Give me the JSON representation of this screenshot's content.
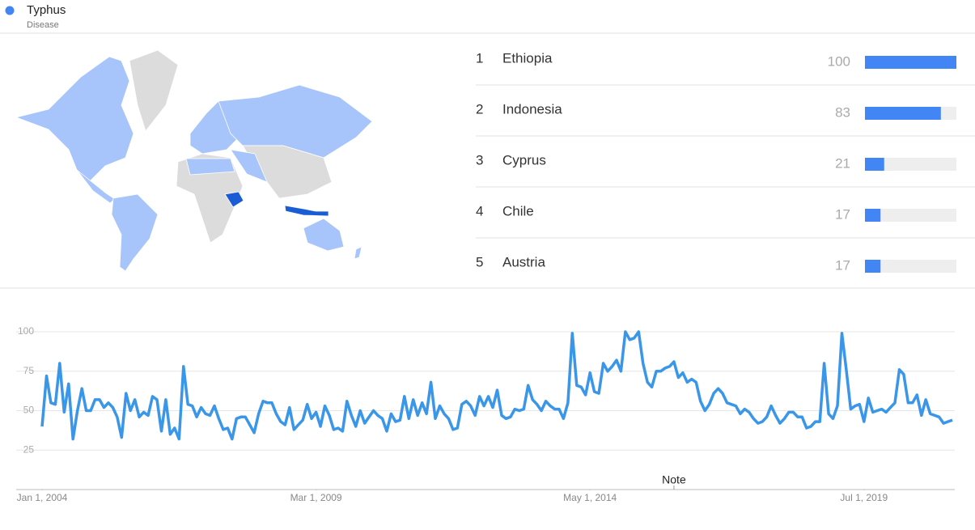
{
  "header": {
    "title": "Typhus",
    "subtitle": "Disease",
    "color": "#4285f4"
  },
  "ranking": {
    "type": "bar",
    "color": "#4285f4",
    "track_color": "#eeeeee",
    "xlim": [
      0,
      100
    ],
    "rows": [
      {
        "rank": 1,
        "name": "Ethiopia",
        "value": 100
      },
      {
        "rank": 2,
        "name": "Indonesia",
        "value": 83
      },
      {
        "rank": 3,
        "name": "Cyprus",
        "value": 21
      },
      {
        "rank": 4,
        "name": "Chile",
        "value": 17
      },
      {
        "rank": 5,
        "name": "Austria",
        "value": 17
      }
    ]
  },
  "chart_data": {
    "type": "line",
    "color": "#3a96e8",
    "grid": true,
    "ylim": [
      0,
      100
    ],
    "yticks": [
      25,
      50,
      75,
      100
    ],
    "xlim": [
      "2004-01-01",
      "2021-03-01"
    ],
    "xticks": [
      {
        "value": "2004-01-01",
        "label": "Jan 1, 2004"
      },
      {
        "value": "2009-03-01",
        "label": "Mar 1, 2009"
      },
      {
        "value": "2014-05-01",
        "label": "May 1, 2014"
      },
      {
        "value": "2019-07-01",
        "label": "Jul 1, 2019"
      }
    ],
    "annotations": [
      {
        "x": "2015-12-01",
        "text": "Note"
      }
    ],
    "x": [
      "2004-01-01",
      "2004-02-01",
      "2004-03-01",
      "2004-04-01",
      "2004-05-01",
      "2004-06-01",
      "2004-07-01",
      "2004-08-01",
      "2004-09-01",
      "2004-10-01",
      "2004-11-01",
      "2004-12-01",
      "2005-01-01",
      "2005-02-01",
      "2005-03-01",
      "2005-04-01",
      "2005-05-01",
      "2005-06-01",
      "2005-07-01",
      "2005-08-01",
      "2005-09-01",
      "2005-10-01",
      "2005-11-01",
      "2005-12-01",
      "2006-01-01",
      "2006-02-01",
      "2006-03-01",
      "2006-04-01",
      "2006-05-01",
      "2006-06-01",
      "2006-07-01",
      "2006-08-01",
      "2006-09-01",
      "2006-10-01",
      "2006-11-01",
      "2006-12-01",
      "2007-01-01",
      "2007-02-01",
      "2007-03-01",
      "2007-04-01",
      "2007-05-01",
      "2007-06-01",
      "2007-07-01",
      "2007-08-01",
      "2007-09-01",
      "2007-10-01",
      "2007-11-01",
      "2007-12-01",
      "2008-01-01",
      "2008-02-01",
      "2008-03-01",
      "2008-04-01",
      "2008-05-01",
      "2008-06-01",
      "2008-07-01",
      "2008-08-01",
      "2008-09-01",
      "2008-10-01",
      "2008-11-01",
      "2008-12-01",
      "2009-01-01",
      "2009-02-01",
      "2009-03-01",
      "2009-04-01",
      "2009-05-01",
      "2009-06-01",
      "2009-07-01",
      "2009-08-01",
      "2009-09-01",
      "2009-10-01",
      "2009-11-01",
      "2009-12-01",
      "2010-01-01",
      "2010-02-01",
      "2010-03-01",
      "2010-04-01",
      "2010-05-01",
      "2010-06-01",
      "2010-07-01",
      "2010-08-01",
      "2010-09-01",
      "2010-10-01",
      "2010-11-01",
      "2010-12-01",
      "2011-01-01",
      "2011-02-01",
      "2011-03-01",
      "2011-04-01",
      "2011-05-01",
      "2011-06-01",
      "2011-07-01",
      "2011-08-01",
      "2011-09-01",
      "2011-10-01",
      "2011-11-01",
      "2011-12-01",
      "2012-01-01",
      "2012-02-01",
      "2012-03-01",
      "2012-04-01",
      "2012-05-01",
      "2012-06-01",
      "2012-07-01",
      "2012-08-01",
      "2012-09-01",
      "2012-10-01",
      "2012-11-01",
      "2012-12-01",
      "2013-01-01",
      "2013-02-01",
      "2013-03-01",
      "2013-04-01",
      "2013-05-01",
      "2013-06-01",
      "2013-07-01",
      "2013-08-01",
      "2013-09-01",
      "2013-10-01",
      "2013-11-01",
      "2013-12-01",
      "2014-01-01",
      "2014-02-01",
      "2014-03-01",
      "2014-04-01",
      "2014-05-01",
      "2014-06-01",
      "2014-07-01",
      "2014-08-01",
      "2014-09-01",
      "2014-10-01",
      "2014-11-01",
      "2014-12-01",
      "2015-01-01",
      "2015-02-01",
      "2015-03-01",
      "2015-04-01",
      "2015-05-01",
      "2015-06-01",
      "2015-07-01",
      "2015-08-01",
      "2015-09-01",
      "2015-10-01",
      "2015-11-01",
      "2015-12-01",
      "2016-01-01",
      "2016-02-01",
      "2016-03-01",
      "2016-04-01",
      "2016-05-01",
      "2016-06-01",
      "2016-07-01",
      "2016-08-01",
      "2016-09-01",
      "2016-10-01",
      "2016-11-01",
      "2016-12-01",
      "2017-01-01",
      "2017-02-01",
      "2017-03-01",
      "2017-04-01",
      "2017-05-01",
      "2017-06-01",
      "2017-07-01",
      "2017-08-01",
      "2017-09-01",
      "2017-10-01",
      "2017-11-01",
      "2017-12-01",
      "2018-01-01",
      "2018-02-01",
      "2018-03-01",
      "2018-04-01",
      "2018-05-01",
      "2018-06-01",
      "2018-07-01",
      "2018-08-01",
      "2018-09-01",
      "2018-10-01",
      "2018-11-01",
      "2018-12-01",
      "2019-01-01",
      "2019-02-01",
      "2019-03-01",
      "2019-04-01",
      "2019-05-01",
      "2019-06-01",
      "2019-07-01",
      "2019-08-01",
      "2019-09-01",
      "2019-10-01",
      "2019-11-01",
      "2019-12-01",
      "2020-01-01",
      "2020-02-01",
      "2020-03-01",
      "2020-04-01",
      "2020-05-01",
      "2020-06-01",
      "2020-07-01",
      "2020-08-01",
      "2020-09-01",
      "2020-10-01",
      "2020-11-01",
      "2020-12-01",
      "2021-01-01",
      "2021-02-01",
      "2021-03-01"
    ],
    "values": [
      40,
      72,
      55,
      54,
      80,
      49,
      67,
      32,
      50,
      64,
      50,
      50,
      57,
      57,
      52,
      55,
      52,
      46,
      33,
      61,
      50,
      57,
      46,
      49,
      47,
      59,
      57,
      37,
      57,
      35,
      39,
      32,
      78,
      54,
      53,
      46,
      52,
      48,
      47,
      53,
      45,
      38,
      39,
      32,
      45,
      46,
      46,
      41,
      36,
      48,
      56,
      55,
      55,
      48,
      43,
      41,
      52,
      38,
      41,
      44,
      54,
      45,
      49,
      40,
      53,
      47,
      38,
      39,
      37,
      56,
      47,
      40,
      50,
      42,
      46,
      50,
      47,
      45,
      37,
      48,
      43,
      44,
      59,
      45,
      57,
      47,
      55,
      48,
      68,
      45,
      53,
      48,
      45,
      38,
      39,
      54,
      56,
      53,
      47,
      59,
      53,
      59,
      52,
      63,
      47,
      45,
      46,
      51,
      50,
      51,
      66,
      57,
      54,
      50,
      56,
      53,
      51,
      51,
      45,
      55,
      99,
      66,
      65,
      60,
      74,
      62,
      61,
      80,
      75,
      78,
      82,
      75,
      100,
      95,
      96,
      100,
      80,
      68,
      65,
      75,
      75,
      77,
      78,
      81,
      71,
      74,
      68,
      70,
      68,
      56,
      50,
      54,
      61,
      64,
      61,
      55,
      54,
      53,
      48,
      51,
      49,
      45,
      42,
      43,
      46,
      53,
      47,
      42,
      45,
      49,
      49,
      46,
      46,
      39,
      40,
      43,
      43,
      80,
      48,
      45,
      53,
      99,
      76,
      51,
      53,
      54,
      43,
      58,
      49,
      50,
      51,
      49,
      52,
      55,
      76,
      73,
      55,
      55,
      60,
      47,
      57,
      48,
      47,
      46,
      42,
      43,
      44
    ]
  }
}
